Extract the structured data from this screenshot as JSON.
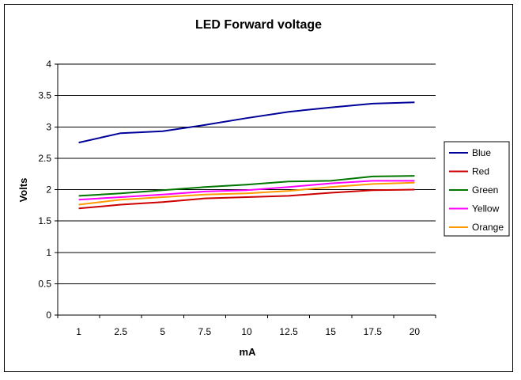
{
  "chart_data": {
    "type": "line",
    "title": "LED Forward voltage",
    "xlabel": "mA",
    "ylabel": "Volts",
    "categories": [
      "1",
      "2.5",
      "5",
      "7.5",
      "10",
      "12.5",
      "15",
      "17.5",
      "20"
    ],
    "ylim": [
      0,
      4
    ],
    "yticks": [
      "0",
      "0.5",
      "1",
      "1.5",
      "2",
      "2.5",
      "3",
      "3.5",
      "4"
    ],
    "grid": "horizontal",
    "legend_position": "right",
    "plot_background": "#ffffff",
    "series": [
      {
        "name": "Blue",
        "color": "#000099",
        "values": [
          2.75,
          2.9,
          2.93,
          3.03,
          3.14,
          3.24,
          3.31,
          3.37,
          3.39
        ]
      },
      {
        "name": "Red",
        "color": "#cc0000",
        "values": [
          1.7,
          1.76,
          1.8,
          1.86,
          1.88,
          1.9,
          1.95,
          1.99,
          2.0
        ]
      },
      {
        "name": "Green",
        "color": "#007700",
        "values": [
          1.9,
          1.94,
          1.99,
          2.04,
          2.08,
          2.13,
          2.14,
          2.21,
          2.22
        ]
      },
      {
        "name": "Yellow",
        "color": "#ff00ff",
        "values": [
          1.84,
          1.88,
          1.92,
          1.97,
          1.99,
          2.04,
          2.1,
          2.14,
          2.14
        ]
      },
      {
        "name": "Orange",
        "color": "#ff9900",
        "values": [
          1.76,
          1.84,
          1.88,
          1.92,
          1.94,
          1.98,
          2.04,
          2.09,
          2.11
        ]
      }
    ]
  }
}
